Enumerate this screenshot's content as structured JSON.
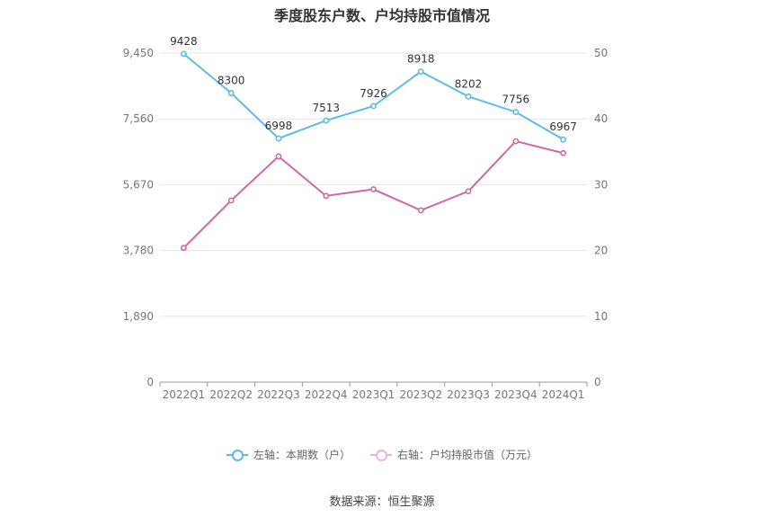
{
  "chart_data": {
    "type": "line",
    "title": "季度股东户数、户均持股市值情况",
    "categories": [
      "2022Q1",
      "2022Q2",
      "2022Q3",
      "2022Q4",
      "2023Q1",
      "2023Q2",
      "2023Q3",
      "2023Q4",
      "2024Q1"
    ],
    "left_axis": {
      "ticks": [
        "0",
        "1,890",
        "3,780",
        "5,670",
        "7,560",
        "9,450"
      ],
      "ylim": [
        0,
        9450
      ]
    },
    "right_axis": {
      "ticks": [
        "0",
        "10",
        "20",
        "30",
        "40",
        "50"
      ],
      "ylim": [
        0,
        50
      ]
    },
    "series": [
      {
        "name": "左轴：本期数（户）",
        "axis": "left",
        "color": "#5bbcec",
        "values": [
          9428,
          8300,
          6998,
          7513,
          7926,
          8918,
          8202,
          7756,
          6967
        ],
        "labels": [
          "9428",
          "8300",
          "6998",
          "7513",
          "7926",
          "8918",
          "8202",
          "7756",
          "6967"
        ]
      },
      {
        "name": "右轴：户均持股市值（万元）",
        "axis": "right",
        "color": "#d0699f",
        "values": [
          20.4,
          27.6,
          34.3,
          28.3,
          29.3,
          26.1,
          29.0,
          36.6,
          34.8
        ]
      }
    ],
    "grid": true,
    "legend_position": "bottom"
  },
  "source": "数据来源：恒生聚源"
}
